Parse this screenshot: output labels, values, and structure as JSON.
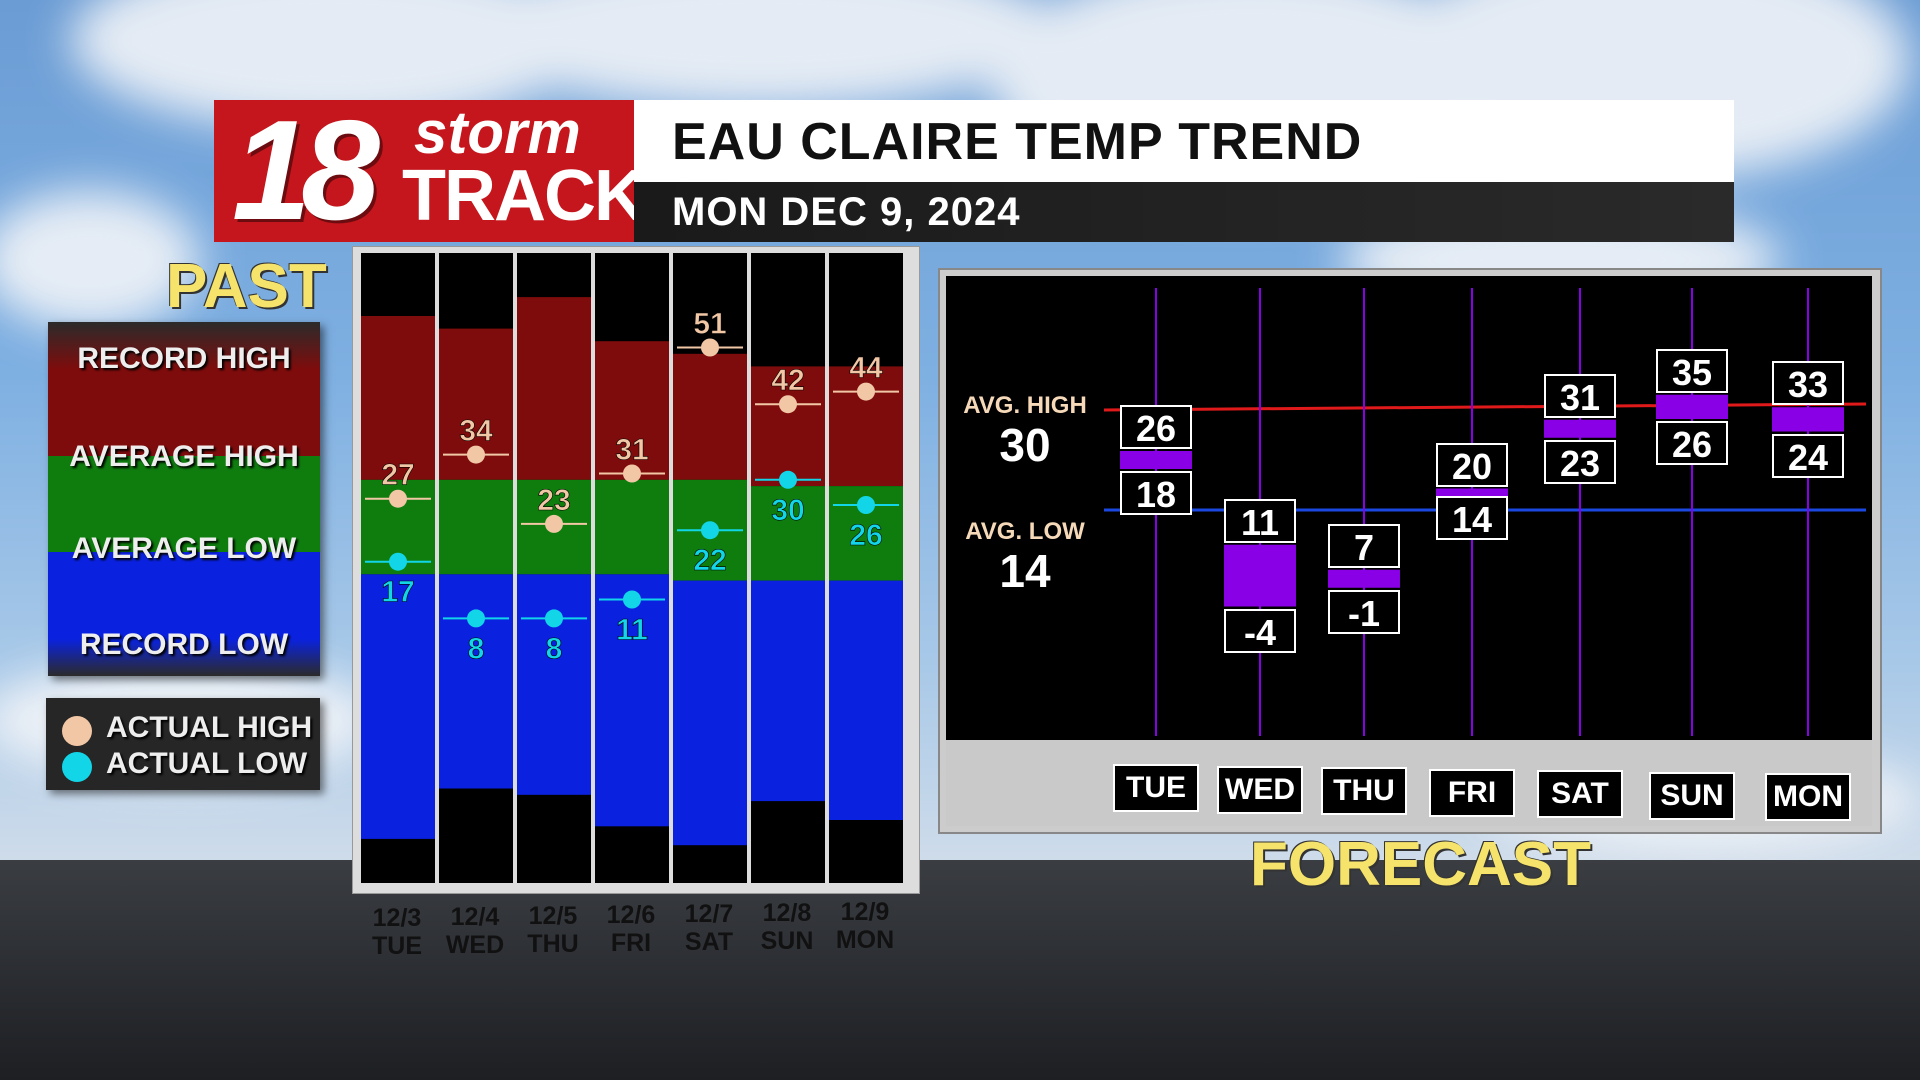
{
  "header": {
    "logo_number": "18",
    "logo_storm": "storm",
    "logo_track": "TRACK",
    "title": "EAU CLAIRE TEMP TREND",
    "date": "MON DEC 9, 2024"
  },
  "past": {
    "title": "PAST",
    "legend": {
      "record_high": "RECORD HIGH",
      "average_high": "AVERAGE HIGH",
      "average_low": "AVERAGE LOW",
      "record_low": "RECORD LOW"
    },
    "dot_legend": {
      "actual_high": "ACTUAL HIGH",
      "actual_low": "ACTUAL LOW"
    }
  },
  "forecast": {
    "title": "FORECAST",
    "avg_high_label": "AVG. HIGH",
    "avg_high_value": "30",
    "avg_low_label": "AVG. LOW",
    "avg_low_value": "14"
  },
  "colors": {
    "record_high_band": "#7e0c0c",
    "average_band": "#0e7d0e",
    "record_low_band": "#0a22e0",
    "actual_high_dot": "#f2c7a6",
    "actual_low_dot": "#12d6e8",
    "forecast_bar": "#8a00e6",
    "avg_high_line": "#e01a1a",
    "avg_low_line": "#1a48e0"
  },
  "chart_data": [
    {
      "type": "bar",
      "title": "PAST",
      "categories": [
        "12/3 TUE",
        "12/4 WED",
        "12/5 THU",
        "12/6 FRI",
        "12/7 SAT",
        "12/8 SUN",
        "12/9 MON"
      ],
      "dates": [
        "12/3",
        "12/4",
        "12/5",
        "12/6",
        "12/7",
        "12/8",
        "12/9"
      ],
      "days": [
        "TUE",
        "WED",
        "THU",
        "FRI",
        "SAT",
        "SUN",
        "MON"
      ],
      "series": [
        {
          "name": "ACTUAL HIGH",
          "values": [
            27,
            34,
            23,
            31,
            51,
            42,
            44
          ]
        },
        {
          "name": "ACTUAL LOW",
          "values": [
            17,
            8,
            8,
            11,
            22,
            30,
            26
          ]
        }
      ],
      "record_high": [
        56,
        54,
        59,
        52,
        50,
        48,
        48
      ],
      "average_high": [
        30,
        30,
        30,
        30,
        30,
        29,
        29
      ],
      "average_low": [
        15,
        15,
        15,
        15,
        14,
        14,
        14
      ],
      "record_low": [
        -27,
        -19,
        -20,
        -25,
        -28,
        -21,
        -24
      ]
    },
    {
      "type": "bar",
      "title": "FORECAST",
      "categories": [
        "TUE",
        "WED",
        "THU",
        "FRI",
        "SAT",
        "SUN",
        "MON"
      ],
      "series": [
        {
          "name": "High",
          "values": [
            26,
            11,
            7,
            20,
            31,
            35,
            33
          ]
        },
        {
          "name": "Low",
          "values": [
            18,
            -4,
            -1,
            14,
            23,
            26,
            24
          ]
        }
      ],
      "avg_high": 30,
      "avg_low": 14
    }
  ]
}
